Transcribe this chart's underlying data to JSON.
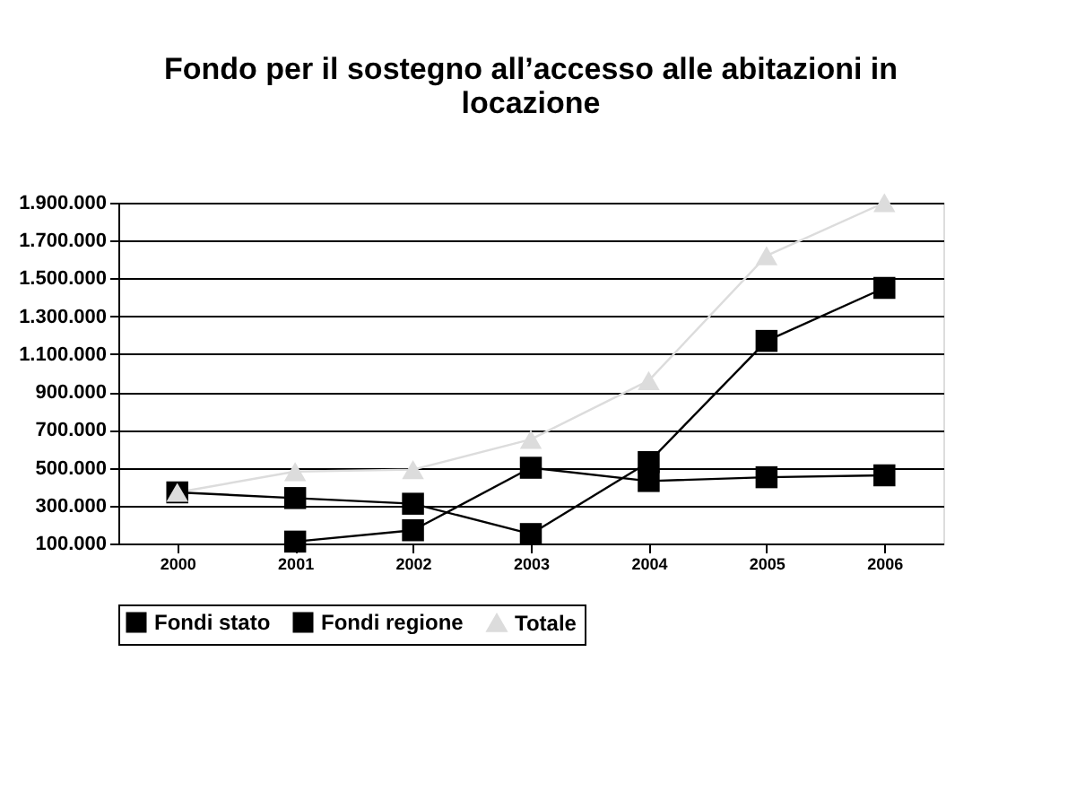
{
  "chart_data": {
    "type": "line",
    "title": "Fondo per il sostegno all’accesso alle abitazioni in locazione",
    "categories": [
      "2000",
      "2001",
      "2002",
      "2003",
      "2004",
      "2005",
      "2006"
    ],
    "series": [
      {
        "name": "Fondi stato",
        "color": "#000000",
        "marker": "square",
        "values": [
          null,
          110000,
          170000,
          500000,
          430000,
          450000,
          460000
        ]
      },
      {
        "name": "Fondi regione",
        "color": "#000000",
        "marker": "square",
        "values": [
          370000,
          340000,
          310000,
          150000,
          530000,
          1170000,
          1450000
        ]
      },
      {
        "name": "Totale",
        "color": "#dcdcdc",
        "marker": "triangle",
        "values": [
          370000,
          480000,
          490000,
          650000,
          960000,
          1620000,
          1900000
        ]
      }
    ],
    "ylim": [
      100000,
      1900000
    ],
    "yticks": [
      {
        "value": 100000,
        "label": "100.000"
      },
      {
        "value": 300000,
        "label": "300.000"
      },
      {
        "value": 500000,
        "label": "500.000"
      },
      {
        "value": 700000,
        "label": "700.000"
      },
      {
        "value": 900000,
        "label": "900.000"
      },
      {
        "value": 1100000,
        "label": "1.100.000"
      },
      {
        "value": 1300000,
        "label": "1.300.000"
      },
      {
        "value": 1500000,
        "label": "1.500.000"
      },
      {
        "value": 1700000,
        "label": "1.700.000"
      },
      {
        "value": 1900000,
        "label": "1.900.000"
      }
    ],
    "grid": "y",
    "legend": "bottom"
  }
}
